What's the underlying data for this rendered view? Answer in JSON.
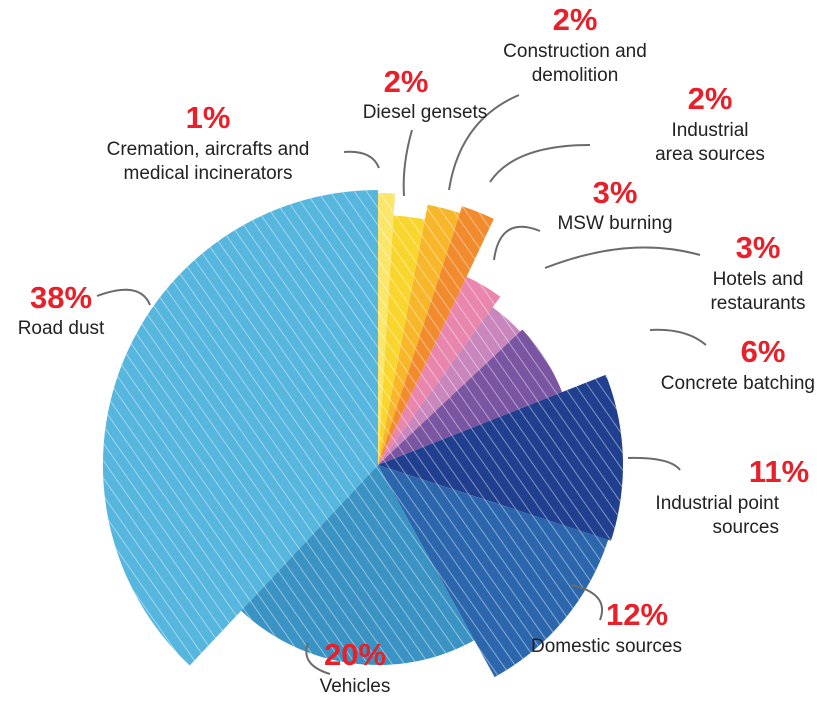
{
  "chart_data": {
    "type": "pie",
    "title": "",
    "slices": [
      {
        "label": "Cremation, aircrafts and medical incinerators",
        "lines": [
          "Cremation, aircrafts and",
          "medical incinerators"
        ],
        "value": 1,
        "value_label": "1%",
        "color": "#f9e66b"
      },
      {
        "label": "Diesel gensets",
        "lines": [
          "Diesel gensets"
        ],
        "value": 2,
        "value_label": "2%",
        "color": "#f9d62e"
      },
      {
        "label": "Construction and demolition",
        "lines": [
          "Construction and",
          "demolition"
        ],
        "value": 2,
        "value_label": "2%",
        "color": "#f8b62a"
      },
      {
        "label": "Industrial area sources",
        "lines": [
          "Industrial",
          "area sources"
        ],
        "value": 2,
        "value_label": "2%",
        "color": "#f18b2d"
      },
      {
        "label": "MSW burning",
        "lines": [
          "MSW burning"
        ],
        "value": 3,
        "value_label": "3%",
        "color": "#e986ad"
      },
      {
        "label": "Hotels and restaurants",
        "lines": [
          "Hotels and",
          "restaurants"
        ],
        "value": 3,
        "value_label": "3%",
        "color": "#c886bc"
      },
      {
        "label": "Concrete batching",
        "lines": [
          "Concrete batching"
        ],
        "value": 6,
        "value_label": "6%",
        "color": "#7a55a2"
      },
      {
        "label": "Industrial point sources",
        "lines": [
          "Industrial point",
          "sources"
        ],
        "value": 11,
        "value_label": "11%",
        "color": "#203f8f"
      },
      {
        "label": "Domestic sources",
        "lines": [
          "Domestic sources"
        ],
        "value": 12,
        "value_label": "12%",
        "color": "#2c67ad"
      },
      {
        "label": "Vehicles",
        "lines": [
          "Vehicles"
        ],
        "value": 20,
        "value_label": "20%",
        "color": "#3a93c3"
      },
      {
        "label": "Road dust",
        "lines": [
          "Road dust"
        ],
        "value": 38,
        "value_label": "38%",
        "color": "#56b6de"
      }
    ]
  }
}
